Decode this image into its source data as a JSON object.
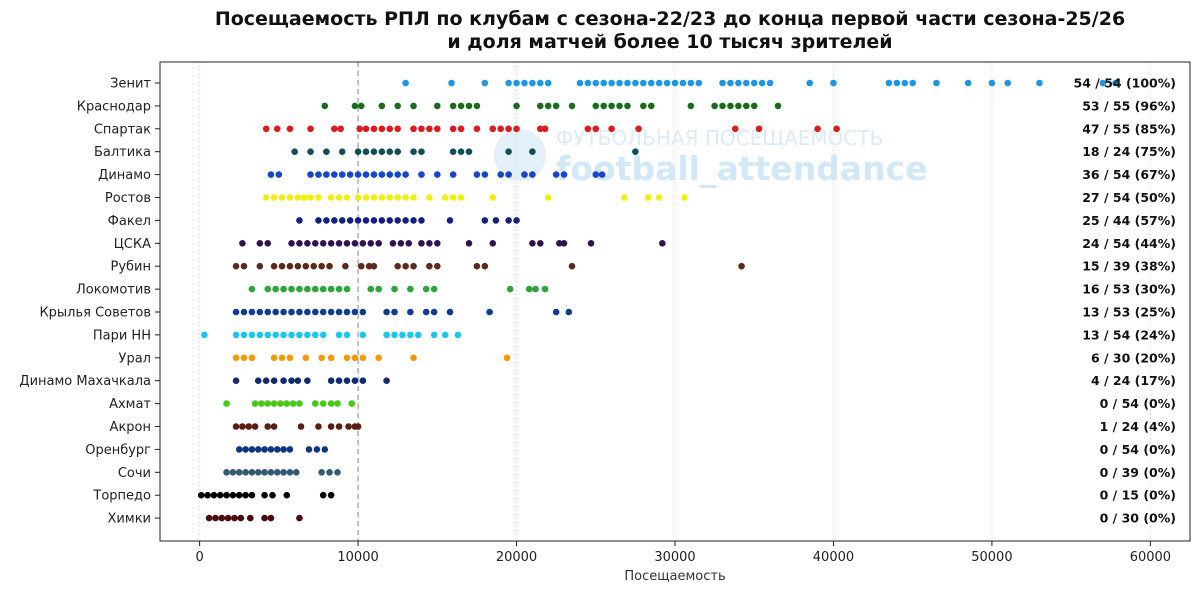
{
  "chart_data": {
    "type": "scatter",
    "title_lines": [
      "Посещаемость РПЛ по клубам с сезона-22/23 до конца первой части сезона-25/26",
      "и доля матчей более 10 тысяч зрителей"
    ],
    "xlabel": "Посещаемость",
    "xlim": [
      -2500,
      62500
    ],
    "xticks": [
      0,
      10000,
      20000,
      30000,
      40000,
      50000,
      60000
    ],
    "threshold_line": 10000,
    "grid": "vertical dotted",
    "watermark": {
      "line1": "ФУТБОЛЬНАЯ ПОСЕЩАЕМОСТЬ",
      "line2": "football_attendance"
    },
    "series": [
      {
        "name": "Зенит",
        "share": "54 / 54 (100%)",
        "color": "#1e96e6",
        "values": [
          13000,
          15900,
          18000,
          19500,
          20000,
          20500,
          21000,
          21500,
          22000,
          24000,
          24500,
          25000,
          25500,
          26000,
          26500,
          27000,
          27500,
          28000,
          28500,
          29000,
          29500,
          30000,
          30500,
          31000,
          31500,
          33000,
          33500,
          34000,
          34500,
          35000,
          35500,
          36000,
          38500,
          40000,
          43500,
          44000,
          44500,
          45000,
          46500,
          48500,
          50000,
          51000,
          53000,
          57000,
          57800
        ]
      },
      {
        "name": "Краснодар",
        "share": "53 / 55 (96%)",
        "color": "#1a6b1a",
        "values": [
          7900,
          9800,
          10200,
          11500,
          12500,
          13500,
          15000,
          16000,
          16500,
          17000,
          17500,
          20000,
          21500,
          22000,
          22500,
          23500,
          25000,
          25500,
          26000,
          26500,
          27000,
          28000,
          28500,
          31000,
          32500,
          33000,
          33500,
          34000,
          34500,
          35000,
          36500
        ]
      },
      {
        "name": "Спартак",
        "share": "47 / 55 (85%)",
        "color": "#dc1c1c",
        "values": [
          4200,
          4900,
          5700,
          7000,
          8500,
          8900,
          10100,
          10500,
          11000,
          11500,
          12000,
          12500,
          13500,
          14000,
          14500,
          15000,
          16000,
          16500,
          17500,
          18500,
          19000,
          19500,
          20000,
          21500,
          21800,
          24500,
          25000,
          26000,
          27700,
          33800,
          35300,
          39000,
          40200
        ]
      },
      {
        "name": "Балтика",
        "share": "18 / 24 (75%)",
        "color": "#0e4f5a",
        "values": [
          6000,
          7000,
          8000,
          9000,
          10000,
          10500,
          11000,
          11500,
          12000,
          12500,
          13500,
          14000,
          16000,
          16500,
          17000,
          19500,
          21000,
          27500
        ]
      },
      {
        "name": "Динамо",
        "share": "36 / 54 (67%)",
        "color": "#1846c8",
        "values": [
          4500,
          5000,
          7000,
          7500,
          8000,
          8500,
          9000,
          9500,
          10000,
          10500,
          11000,
          11500,
          12000,
          12500,
          13000,
          14000,
          15000,
          16000,
          17500,
          18000,
          19000,
          19500,
          20500,
          21000,
          22500,
          23000,
          25000,
          25400
        ]
      },
      {
        "name": "Ростов",
        "share": "27 / 54 (50%)",
        "color": "#f0ee14",
        "values": [
          4200,
          4700,
          5200,
          5700,
          6200,
          6600,
          7000,
          7500,
          8300,
          8800,
          9300,
          10000,
          10500,
          11000,
          11500,
          12000,
          12500,
          13000,
          13500,
          14500,
          15500,
          16000,
          16500,
          18500,
          22000,
          26800,
          28300,
          29000,
          30600
        ]
      },
      {
        "name": "Факел",
        "share": "25 / 44 (57%)",
        "color": "#142080",
        "values": [
          6300,
          7500,
          8000,
          8500,
          9000,
          9500,
          10000,
          10500,
          11000,
          11500,
          12000,
          12500,
          13000,
          13500,
          14000,
          15800,
          18000,
          18700,
          19500,
          20000
        ]
      },
      {
        "name": "ЦСКА",
        "share": "24 / 54 (44%)",
        "color": "#2e1450",
        "values": [
          2700,
          3800,
          4300,
          5800,
          6300,
          6800,
          7300,
          7800,
          8300,
          8800,
          9300,
          9800,
          10300,
          10800,
          11300,
          12200,
          12700,
          13200,
          14000,
          14500,
          15000,
          17000,
          18500,
          21000,
          21500,
          22700,
          23000,
          24700,
          29200
        ]
      },
      {
        "name": "Рубин",
        "share": "15 / 39 (38%)",
        "color": "#5c2a1a",
        "values": [
          2300,
          2800,
          3800,
          4700,
          5200,
          5700,
          6200,
          6700,
          7200,
          7700,
          8200,
          9200,
          10200,
          10700,
          11000,
          12500,
          13000,
          13500,
          14500,
          15000,
          17500,
          18000,
          23500,
          34200
        ]
      },
      {
        "name": "Локомотив",
        "share": "16 / 53 (30%)",
        "color": "#2ea43c",
        "values": [
          3300,
          4300,
          4800,
          5300,
          5800,
          6300,
          6800,
          7300,
          7800,
          8300,
          8800,
          9300,
          10800,
          11300,
          12300,
          13300,
          14300,
          14800,
          19600,
          20800,
          21200,
          21800
        ]
      },
      {
        "name": "Крылья Советов",
        "share": "13 / 53 (25%)",
        "color": "#0f3c8c",
        "values": [
          2300,
          2800,
          3300,
          3800,
          4300,
          4800,
          5300,
          5800,
          6300,
          6800,
          7300,
          7800,
          8300,
          8800,
          9300,
          9800,
          10300,
          11800,
          12300,
          13300,
          14300,
          14800,
          15800,
          18300,
          22500,
          23300
        ]
      },
      {
        "name": "Пари НН",
        "share": "13 / 54 (24%)",
        "color": "#1ec4f0",
        "values": [
          300,
          2300,
          2800,
          3300,
          3800,
          4300,
          4800,
          5300,
          5800,
          6300,
          6800,
          7300,
          7800,
          8800,
          9300,
          10300,
          11800,
          12300,
          12800,
          13300,
          13800,
          14800,
          15500,
          16300
        ]
      },
      {
        "name": "Урал",
        "share": "6 / 30 (20%)",
        "color": "#f09a0a",
        "values": [
          2300,
          2800,
          3300,
          4700,
          5200,
          5700,
          6700,
          7700,
          8300,
          9300,
          9800,
          10300,
          11300,
          13500,
          19400
        ]
      },
      {
        "name": "Динамо Махачкала",
        "share": "4 / 24 (17%)",
        "color": "#122a6e",
        "values": [
          2300,
          3700,
          4200,
          4700,
          5300,
          5800,
          6200,
          6800,
          8300,
          8800,
          9300,
          9800,
          10300,
          11800
        ]
      },
      {
        "name": "Ахмат",
        "share": "0 / 54 (0%)",
        "color": "#48c818",
        "values": [
          1700,
          3500,
          3900,
          4300,
          4700,
          5100,
          5500,
          5900,
          6300,
          7300,
          7800,
          8300,
          8700,
          9600
        ]
      },
      {
        "name": "Акрон",
        "share": "1 / 24 (4%)",
        "color": "#5a1e12",
        "values": [
          2300,
          2700,
          3100,
          3500,
          4300,
          4700,
          6400,
          7500,
          8300,
          8800,
          9400,
          9800,
          10000
        ]
      },
      {
        "name": "Оренбург",
        "share": "0 / 54 (0%)",
        "color": "#0e3684",
        "values": [
          2500,
          2900,
          3300,
          3700,
          4100,
          4500,
          4900,
          5300,
          5700,
          6900,
          7400,
          7900
        ]
      },
      {
        "name": "Сочи",
        "share": "0 / 39 (0%)",
        "color": "#325a70",
        "values": [
          1700,
          2100,
          2500,
          2900,
          3300,
          3700,
          4100,
          4500,
          4900,
          5300,
          5700,
          6100,
          7700,
          8200,
          8700
        ]
      },
      {
        "name": "Торпедо",
        "share": "0 / 15 (0%)",
        "color": "#000000",
        "values": [
          100,
          500,
          900,
          1300,
          1700,
          2100,
          2500,
          2900,
          3300,
          4100,
          4600,
          5500,
          7800,
          8300
        ]
      },
      {
        "name": "Химки",
        "share": "0 / 30 (0%)",
        "color": "#4a0a10",
        "values": [
          600,
          1000,
          1400,
          1800,
          2200,
          2600,
          3200,
          4100,
          4500,
          6300
        ]
      }
    ]
  }
}
